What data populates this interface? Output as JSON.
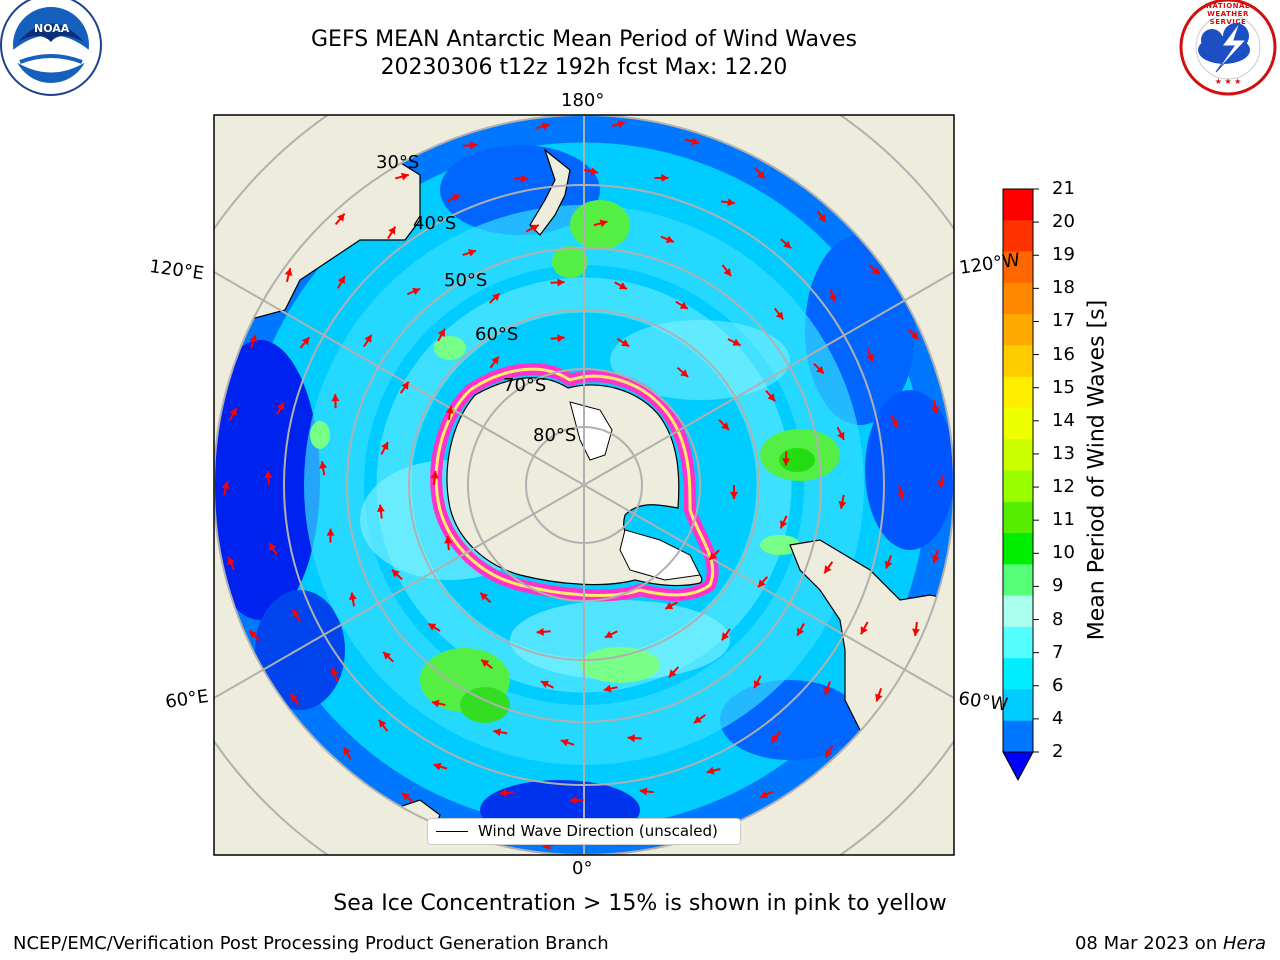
{
  "title": {
    "line1": "GEFS MEAN Antarctic Mean Period of Wind Waves",
    "line2": "20230306 t12z 192h fcst   Max: 12.20"
  },
  "map": {
    "projection": "South Polar Stereographic",
    "longitude_labels": {
      "top": "180°",
      "bottom": "0°",
      "upper_left": "120°E",
      "upper_right": "120°W",
      "lower_left": "60°E",
      "lower_right": "60°W"
    },
    "latitude_labels": [
      "30°S",
      "40°S",
      "50°S",
      "60°S",
      "70°S",
      "80°S"
    ],
    "legend_label": "Wind Wave Direction (unscaled)",
    "arrow_color": "#ff0000",
    "land_color": "#eeecdc",
    "sea_ice_color": "#ff33cc"
  },
  "colorbar": {
    "label": "Mean Period of Wind Waves [s]",
    "ticks": [
      "21",
      "20",
      "19",
      "18",
      "17",
      "16",
      "15",
      "14",
      "13",
      "12",
      "11",
      "10",
      "9",
      "8",
      "7",
      "6",
      "4",
      "2"
    ],
    "colors": [
      "#ff0000",
      "#ff3300",
      "#ff6600",
      "#ff8800",
      "#ffaa00",
      "#ffcc00",
      "#ffee00",
      "#eeff00",
      "#ccff00",
      "#99ff00",
      "#55ee00",
      "#00ee00",
      "#55ff77",
      "#aaffee",
      "#55ffff",
      "#00eeff",
      "#00ccff",
      "#0077ff"
    ],
    "under_color": "#0000ff"
  },
  "footer": {
    "note": "Sea Ice Concentration > 15% is shown in pink to yellow",
    "credit_left": "NCEP/EMC/Verification Post Processing Product Generation Branch",
    "credit_date": "08 Mar 2023 on ",
    "credit_host": "Hera"
  },
  "logos": {
    "left": "NOAA",
    "right": "NATIONAL WEATHER SERVICE"
  }
}
